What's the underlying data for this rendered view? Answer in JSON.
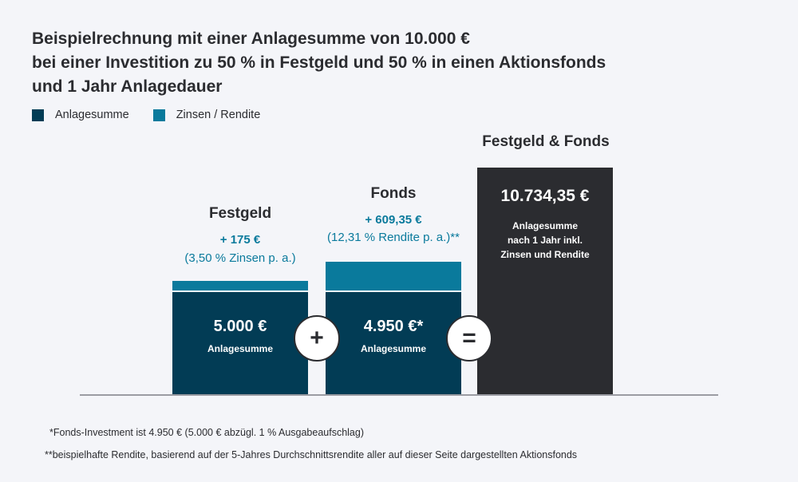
{
  "chart_data": {
    "type": "bar",
    "title_lines": [
      "Beispielrechnung mit einer Anlagesumme von 10.000 €",
      "bei einer Investition zu 50 % in Festgeld und 50 % in einen Aktionsfonds",
      "und 1 Jahr Anlagedauer"
    ],
    "legend": [
      {
        "label": "Anlagesumme",
        "color": "#023c55"
      },
      {
        "label": "Zinsen / Rendite",
        "color": "#0a7a9c"
      }
    ],
    "categories": [
      "Festgeld",
      "Fonds",
      "Festgeld & Fonds"
    ],
    "series": [
      {
        "name": "Anlagesumme",
        "values": [
          5000,
          4950,
          10734.35
        ]
      },
      {
        "name": "Zinsen / Rendite",
        "values": [
          175,
          609.35,
          0
        ]
      }
    ],
    "bars": [
      {
        "category": "Festgeld",
        "value_label": "5.000 €",
        "sub_label": "Anlagesumme",
        "gain_label": "+ 175 €",
        "rate_label": "(3,50 % Zinsen p. a.)"
      },
      {
        "category": "Fonds",
        "value_label": "4.950 €*",
        "sub_label": "Anlagesumme",
        "gain_label": "+ 609,35 €",
        "rate_label": "(12,31 %  Rendite p. a.)**"
      },
      {
        "category": "Festgeld & Fonds",
        "value_label": "10.734,35 €",
        "sub_label_lines": [
          "Anlagesumme",
          "nach 1 Jahr inkl.",
          "Zinsen und Rendite"
        ]
      }
    ],
    "operators": [
      "+",
      "="
    ],
    "colors": {
      "base": "#023c55",
      "gain": "#0a7a9c",
      "total": "#2b2c30"
    },
    "ylim": [
      0,
      10734.35
    ]
  },
  "footnotes": [
    "*Fonds-Investment ist 4.950 € (5.000 € abzügl. 1 % Ausgabeaufschlag)",
    "**beispielhafte Rendite, basierend auf der 5-Jahres Durchschnittsrendite aller auf dieser Seite dargestellten Aktionsfonds"
  ]
}
